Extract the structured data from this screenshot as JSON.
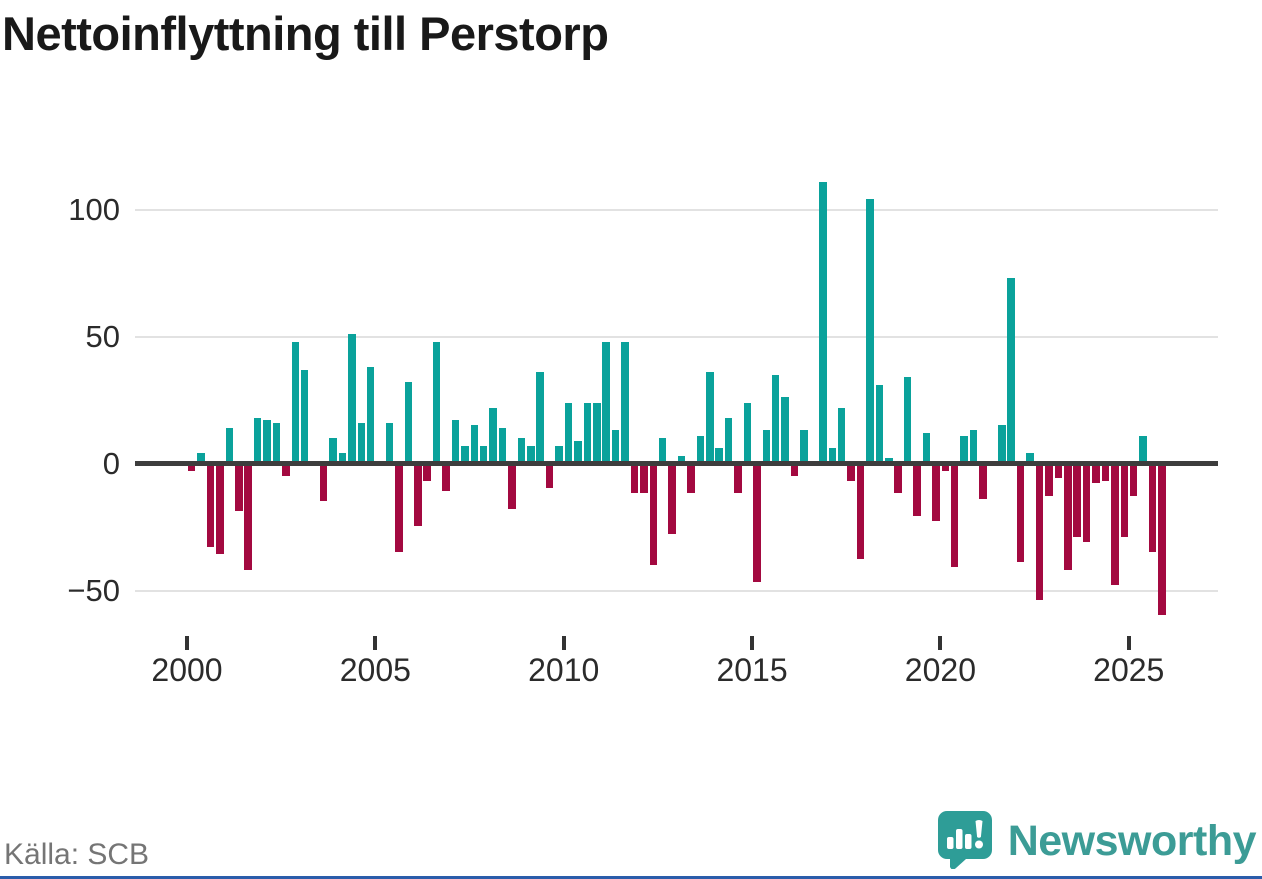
{
  "header": {
    "title": "Nettoinflyttning till Perstorp"
  },
  "footer": {
    "source": "Källa: SCB",
    "brand": {
      "wordmark": "Newsworthy",
      "icon": "newsworthy-speech-bubble-chart-icon"
    }
  },
  "colors": {
    "positive_bar": "#0aa29b",
    "negative_bar": "#a30940",
    "grid": "#e2e2e2",
    "zero_line": "#3d3d3d",
    "title_text": "#191919",
    "axis_text": "#2b2b2b",
    "source_text": "#757575",
    "brand_teal": "#3c9c96",
    "bottom_accent": "#2a5caa"
  },
  "chart_data": {
    "type": "bar",
    "title": "Nettoinflyttning till Perstorp",
    "frequency": "quarterly",
    "start_period": "2000-Q1",
    "end_period": "2025-Q4",
    "values": [
      -2,
      4,
      -32,
      -35,
      14,
      -18,
      -41,
      18,
      17,
      16,
      -4,
      48,
      37,
      1,
      -14,
      10,
      4,
      51,
      16,
      38,
      1,
      16,
      -34,
      32,
      -24,
      -6,
      48,
      -10,
      17,
      7,
      15,
      7,
      22,
      14,
      -17,
      10,
      7,
      36,
      -9,
      7,
      24,
      9,
      24,
      24,
      48,
      13,
      48,
      -11,
      -11,
      -39,
      10,
      -27,
      3,
      -11,
      11,
      36,
      6,
      18,
      -11,
      24,
      -46,
      13,
      35,
      26,
      -4,
      13,
      0,
      111,
      6,
      22,
      -6,
      -37,
      104,
      31,
      2,
      -11,
      34,
      -20,
      12,
      -22,
      -2,
      -40,
      11,
      13,
      -13,
      1,
      15,
      73,
      -38,
      4,
      -53,
      -12,
      -5,
      -41,
      -28,
      -30,
      -7,
      -6,
      -47,
      -28,
      -12,
      11,
      -34,
      -59
    ],
    "y_ticks": [
      {
        "value": 100,
        "label": "100"
      },
      {
        "value": 50,
        "label": "50"
      },
      {
        "value": 0,
        "label": "0"
      },
      {
        "value": -50,
        "label": "−50"
      }
    ],
    "x_ticks": [
      {
        "year": 2000,
        "label": "2000"
      },
      {
        "year": 2005,
        "label": "2005"
      },
      {
        "year": 2010,
        "label": "2010"
      },
      {
        "year": 2015,
        "label": "2015"
      },
      {
        "year": 2020,
        "label": "2020"
      },
      {
        "year": 2025,
        "label": "2025"
      }
    ],
    "ylim": [
      -65,
      115
    ],
    "grid": true,
    "legend": false
  }
}
